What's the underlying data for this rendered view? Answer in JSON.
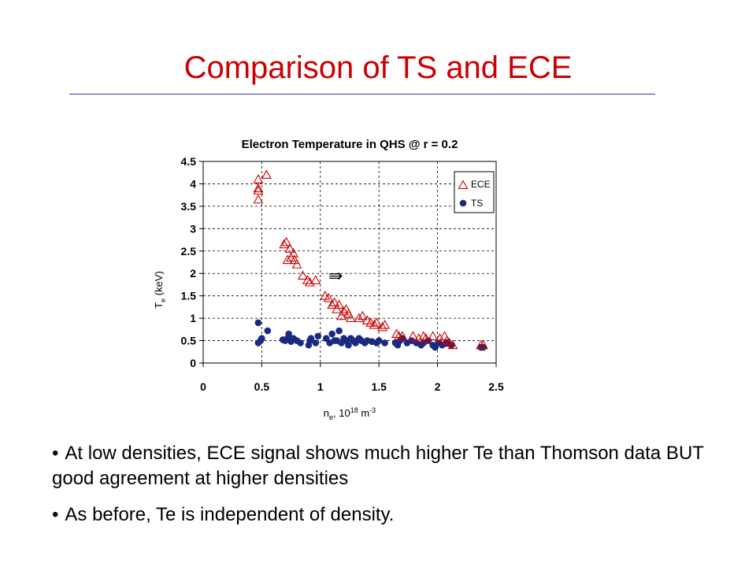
{
  "slide": {
    "title": "Comparison of TS and ECE",
    "bullets": [
      "At low densities, ECE signal shows much higher Te than Thomson data BUT good agreement at higher densities",
      "As before, Te is independent of density."
    ]
  },
  "chart_data": {
    "type": "scatter",
    "title": "Electron Temperature in QHS @ r = 0.2",
    "xlabel": "n",
    "xlabel_sub": "e",
    "xlabel_rest": ", 10",
    "xlabel_sup": "18",
    "xlabel_unit": " m",
    "xlabel_unit_sup": "-3",
    "ylabel": "T",
    "ylabel_sub": "e",
    "ylabel_rest": " (keV)",
    "xlim": [
      0,
      2.5
    ],
    "ylim": [
      0,
      4.5
    ],
    "xticks": [
      "0",
      "0.5",
      "1",
      "1.5",
      "2",
      "2.5"
    ],
    "yticks": [
      "0",
      "0.5",
      "1",
      "1.5",
      "2",
      "2.5",
      "3",
      "3.5",
      "4",
      "4.5"
    ],
    "grid": "horizontal dashed",
    "legend_position": "top-right",
    "annotation": "⇛",
    "colors": {
      "ECE": "#cc0000",
      "TS": "#1a2a80"
    },
    "series": [
      {
        "name": "ECE",
        "marker": "triangle-open",
        "points": [
          [
            0.47,
            4.1
          ],
          [
            0.47,
            3.9
          ],
          [
            0.47,
            3.85
          ],
          [
            0.47,
            3.65
          ],
          [
            0.54,
            4.2
          ],
          [
            0.69,
            2.65
          ],
          [
            0.71,
            2.7
          ],
          [
            0.72,
            2.3
          ],
          [
            0.74,
            2.55
          ],
          [
            0.75,
            2.35
          ],
          [
            0.77,
            2.45
          ],
          [
            0.78,
            2.3
          ],
          [
            0.8,
            2.2
          ],
          [
            0.85,
            1.95
          ],
          [
            0.89,
            1.85
          ],
          [
            0.91,
            1.8
          ],
          [
            0.96,
            1.85
          ],
          [
            1.04,
            1.5
          ],
          [
            1.07,
            1.45
          ],
          [
            1.1,
            1.3
          ],
          [
            1.12,
            1.35
          ],
          [
            1.14,
            1.2
          ],
          [
            1.16,
            1.3
          ],
          [
            1.18,
            1.05
          ],
          [
            1.2,
            1.15
          ],
          [
            1.22,
            1.2
          ],
          [
            1.24,
            1.1
          ],
          [
            1.26,
            1.0
          ],
          [
            1.33,
            1.0
          ],
          [
            1.36,
            1.05
          ],
          [
            1.4,
            0.95
          ],
          [
            1.43,
            0.9
          ],
          [
            1.46,
            0.85
          ],
          [
            1.48,
            0.9
          ],
          [
            1.53,
            0.8
          ],
          [
            1.55,
            0.85
          ],
          [
            1.65,
            0.65
          ],
          [
            1.67,
            0.6
          ],
          [
            1.7,
            0.6
          ],
          [
            1.79,
            0.6
          ],
          [
            1.84,
            0.55
          ],
          [
            1.88,
            0.6
          ],
          [
            1.9,
            0.55
          ],
          [
            1.96,
            0.6
          ],
          [
            2.02,
            0.55
          ],
          [
            2.06,
            0.6
          ],
          [
            2.08,
            0.5
          ],
          [
            2.1,
            0.45
          ],
          [
            2.13,
            0.4
          ],
          [
            2.37,
            0.4
          ],
          [
            2.39,
            0.4
          ]
        ]
      },
      {
        "name": "TS",
        "marker": "circle",
        "points": [
          [
            0.47,
            0.9
          ],
          [
            0.47,
            0.45
          ],
          [
            0.49,
            0.5
          ],
          [
            0.5,
            0.55
          ],
          [
            0.55,
            0.72
          ],
          [
            0.68,
            0.52
          ],
          [
            0.7,
            0.5
          ],
          [
            0.72,
            0.55
          ],
          [
            0.73,
            0.65
          ],
          [
            0.75,
            0.48
          ],
          [
            0.77,
            0.55
          ],
          [
            0.8,
            0.5
          ],
          [
            0.83,
            0.45
          ],
          [
            0.9,
            0.4
          ],
          [
            0.91,
            0.5
          ],
          [
            0.92,
            0.55
          ],
          [
            0.96,
            0.45
          ],
          [
            0.98,
            0.6
          ],
          [
            1.05,
            0.55
          ],
          [
            1.08,
            0.45
          ],
          [
            1.1,
            0.65
          ],
          [
            1.12,
            0.5
          ],
          [
            1.14,
            0.5
          ],
          [
            1.16,
            0.72
          ],
          [
            1.18,
            0.45
          ],
          [
            1.2,
            0.55
          ],
          [
            1.22,
            0.5
          ],
          [
            1.24,
            0.4
          ],
          [
            1.26,
            0.55
          ],
          [
            1.28,
            0.5
          ],
          [
            1.3,
            0.45
          ],
          [
            1.33,
            0.55
          ],
          [
            1.35,
            0.5
          ],
          [
            1.38,
            0.45
          ],
          [
            1.4,
            0.5
          ],
          [
            1.44,
            0.48
          ],
          [
            1.48,
            0.45
          ],
          [
            1.5,
            0.5
          ],
          [
            1.55,
            0.45
          ],
          [
            1.64,
            0.45
          ],
          [
            1.66,
            0.4
          ],
          [
            1.68,
            0.5
          ],
          [
            1.7,
            0.55
          ],
          [
            1.74,
            0.45
          ],
          [
            1.78,
            0.5
          ],
          [
            1.82,
            0.45
          ],
          [
            1.86,
            0.4
          ],
          [
            1.88,
            0.45
          ],
          [
            1.92,
            0.5
          ],
          [
            1.96,
            0.4
          ],
          [
            1.98,
            0.35
          ],
          [
            2.01,
            0.45
          ],
          [
            2.04,
            0.4
          ],
          [
            2.08,
            0.45
          ],
          [
            2.12,
            0.4
          ],
          [
            2.37,
            0.35
          ],
          [
            2.39,
            0.35
          ]
        ]
      }
    ]
  }
}
